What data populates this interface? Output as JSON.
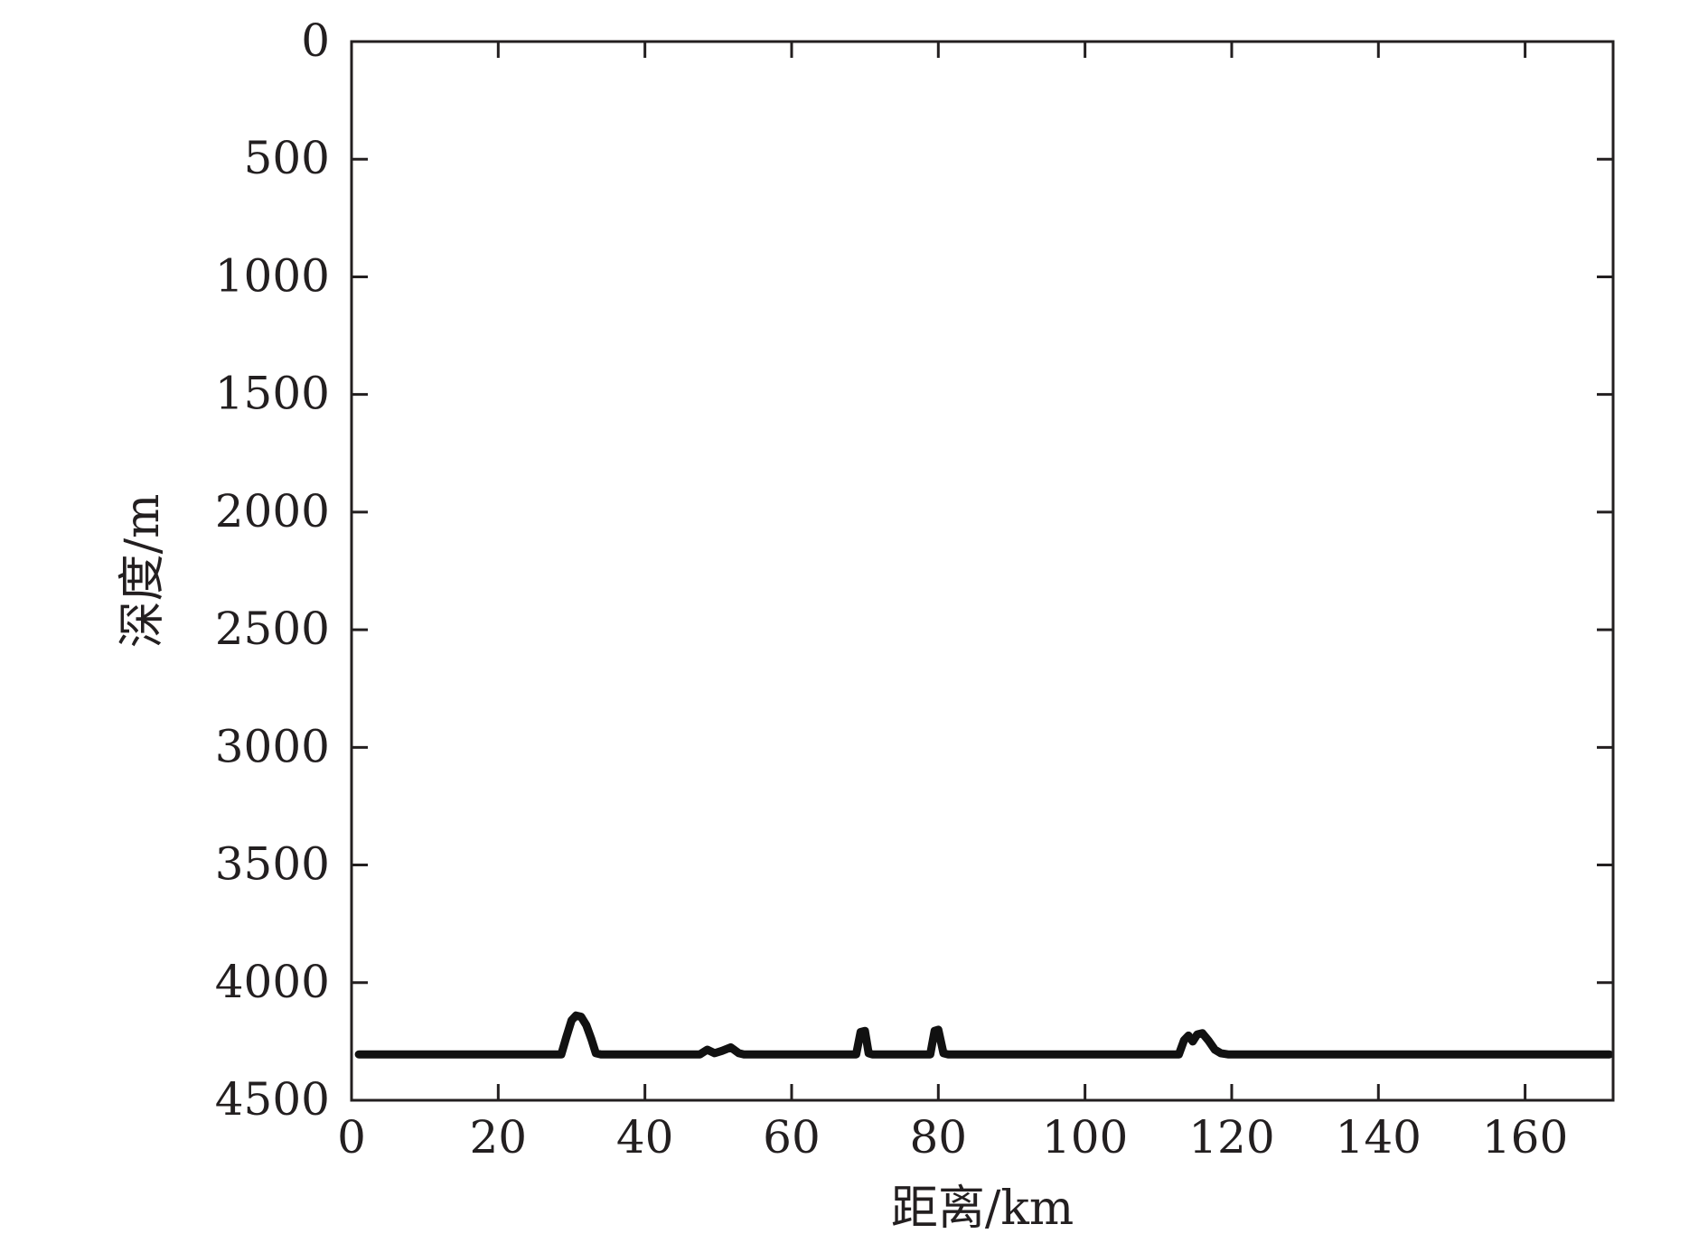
{
  "chart_data": {
    "type": "line",
    "title": "",
    "xlabel": "距离/km",
    "ylabel": "深度/m",
    "xlim": [
      0,
      172
    ],
    "ylim": [
      0,
      4500
    ],
    "y_inverted": true,
    "grid": false,
    "legend": "none",
    "x_ticks": [
      0,
      20,
      40,
      60,
      80,
      100,
      120,
      140,
      160
    ],
    "y_ticks": [
      0,
      500,
      1000,
      1500,
      2000,
      2500,
      3000,
      3500,
      4000,
      4500
    ],
    "x_tick_labels": [
      "0",
      "20",
      "40",
      "60",
      "80",
      "100",
      "120",
      "140",
      "160"
    ],
    "y_tick_labels": [
      "0",
      "500",
      "1000",
      "1500",
      "2000",
      "2500",
      "3000",
      "3500",
      "4000",
      "4500"
    ],
    "series": [
      {
        "color": "#111111",
        "x": [
          1,
          10,
          20,
          28.6,
          29.3,
          30.0,
          30.6,
          31.3,
          32.0,
          32.7,
          33.3,
          34.0,
          40,
          47.5,
          48.5,
          49.5,
          50.5,
          51.7,
          52.8,
          53.5,
          60,
          68.8,
          69.4,
          70.0,
          70.5,
          71,
          78.9,
          79.5,
          80.0,
          80.7,
          81.3,
          90,
          100,
          112.8,
          113.5,
          114.1,
          114.7,
          115.3,
          116.0,
          116.8,
          117.7,
          118.5,
          119.5,
          130,
          140,
          150,
          160,
          171.5
        ],
        "y": [
          4305,
          4305,
          4305,
          4305,
          4230,
          4160,
          4140,
          4145,
          4180,
          4240,
          4300,
          4305,
          4305,
          4305,
          4285,
          4300,
          4290,
          4275,
          4300,
          4305,
          4305,
          4305,
          4210,
          4205,
          4300,
          4305,
          4305,
          4205,
          4200,
          4300,
          4305,
          4305,
          4305,
          4305,
          4245,
          4225,
          4250,
          4220,
          4215,
          4245,
          4285,
          4300,
          4305,
          4305,
          4305,
          4305,
          4305,
          4305
        ]
      }
    ]
  }
}
